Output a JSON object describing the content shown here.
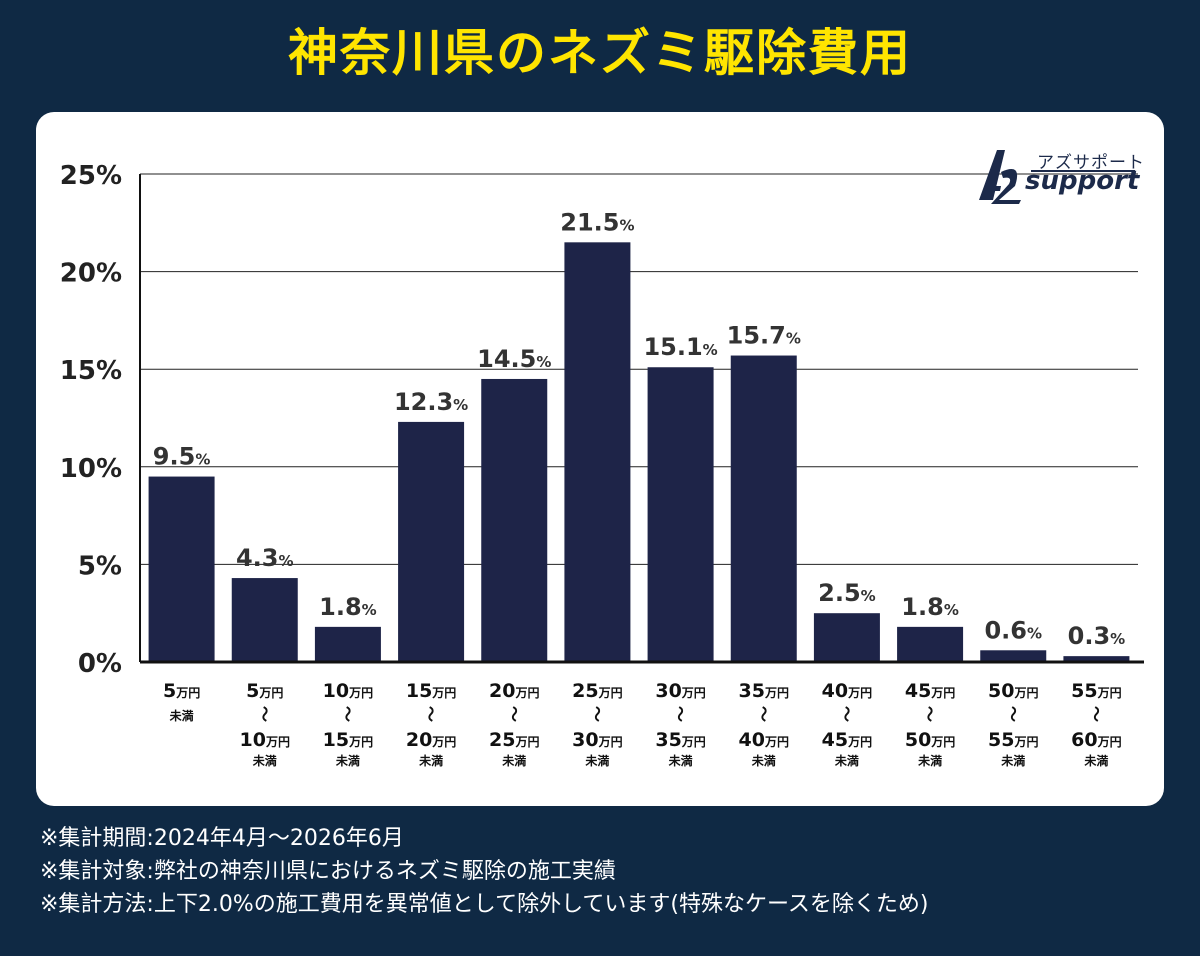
{
  "title": "神奈川県のネズミ駆除費用",
  "logo": {
    "kana": "アズサポート",
    "word": "support"
  },
  "notes": [
    "※集計期間:2024年4月〜2026年6月",
    "※集計対象:弊社の神奈川県におけるネズミ駆除の施工実績",
    "※集計方法:上下2.0%の施工費用を異常値として除外しています(特殊なケースを除くため)"
  ],
  "colors": {
    "background": "#0f2944",
    "title": "#ffe500",
    "bar": "#1e2448",
    "panel": "#ffffff"
  },
  "chart_data": {
    "type": "bar",
    "ylim": [
      0,
      25
    ],
    "yticks": [
      "0%",
      "5%",
      "10%",
      "15%",
      "20%",
      "25%"
    ],
    "ytick_values": [
      0,
      5,
      10,
      15,
      20,
      25
    ],
    "grid": true,
    "values": [
      9.5,
      4.3,
      1.8,
      12.3,
      14.5,
      21.5,
      15.1,
      15.7,
      2.5,
      1.8,
      0.6,
      0.3
    ],
    "value_labels": [
      "9.5",
      "4.3",
      "1.8",
      "12.3",
      "14.5",
      "21.5",
      "15.1",
      "15.7",
      "2.5",
      "1.8",
      "0.6",
      "0.3"
    ],
    "value_unit": "%",
    "categories": [
      {
        "from": "5",
        "to": null
      },
      {
        "from": "5",
        "to": "10"
      },
      {
        "from": "10",
        "to": "15"
      },
      {
        "from": "15",
        "to": "20"
      },
      {
        "from": "20",
        "to": "25"
      },
      {
        "from": "25",
        "to": "30"
      },
      {
        "from": "30",
        "to": "35"
      },
      {
        "from": "35",
        "to": "40"
      },
      {
        "from": "40",
        "to": "45"
      },
      {
        "from": "45",
        "to": "50"
      },
      {
        "from": "50",
        "to": "55"
      },
      {
        "from": "55",
        "to": "60"
      }
    ],
    "unit_label": "万円",
    "range_mark": "〜",
    "below_label": "未満"
  }
}
